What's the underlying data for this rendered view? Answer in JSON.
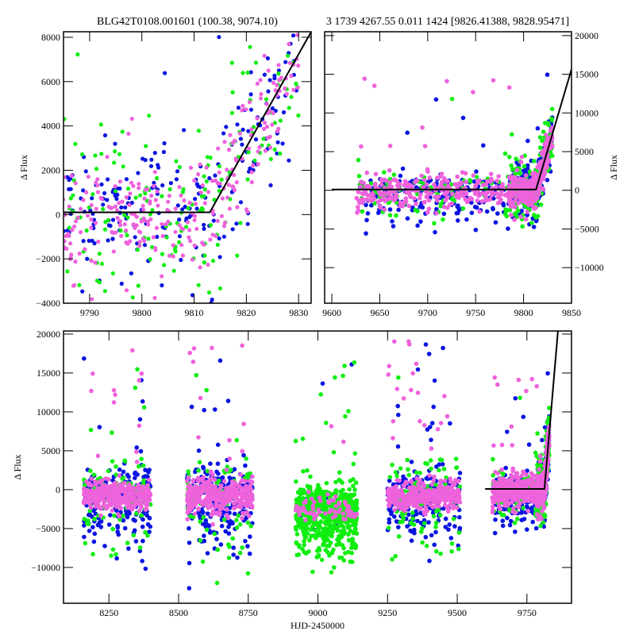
{
  "chart_data": [
    {
      "id": "zoom",
      "type": "scatter",
      "title": "BLG42T0108.001601 (100.38, 9074.10)",
      "xlabel": "",
      "ylabel": "Δ Flux",
      "xlim": [
        9785,
        9832.4
      ],
      "ylim": [
        -4000,
        8250
      ],
      "xticks": [
        9790,
        9800,
        9810,
        9820,
        9830
      ],
      "yticks": [
        -4000,
        -2000,
        0,
        2000,
        4000,
        6000,
        8000
      ],
      "ylabel_side": "left"
    },
    {
      "id": "season",
      "type": "scatter",
      "title": "3 1739 4267.55 0.011 1424 [9826.41388, 9828.95471]",
      "xlabel": "",
      "ylabel": "Δ Flux",
      "xlim": [
        9592.5,
        9850
      ],
      "ylim": [
        -14600,
        20500
      ],
      "xticks": [
        9600,
        9650,
        9700,
        9750,
        9800,
        9850
      ],
      "yticks": [
        -10000,
        -5000,
        0,
        5000,
        10000,
        15000,
        20000
      ],
      "ylabel_side": "right"
    },
    {
      "id": "full",
      "type": "scatter",
      "title": "",
      "xlabel": "HJD-2450000",
      "ylabel": "Δ Flux",
      "xlim": [
        8087,
        9910
      ],
      "ylim": [
        -14600,
        20400
      ],
      "xticks": [
        8250,
        8500,
        8750,
        9000,
        9250,
        9500,
        9750
      ],
      "yticks": [
        -10000,
        -5000,
        0,
        5000,
        10000,
        15000,
        20000
      ],
      "ylabel_side": "left"
    }
  ],
  "series": [
    {
      "name": "blue",
      "color": "#0a14e0"
    },
    {
      "name": "green",
      "color": "#10ee10"
    },
    {
      "name": "pink",
      "color": "#ee62dc"
    }
  ],
  "seasons": [
    {
      "start": 8160,
      "end": 8400,
      "mean": -700,
      "pink_sd": 900,
      "blue_sd": 3200,
      "green_sd": 4000,
      "mix": [
        0.3,
        0.15,
        0.55
      ]
    },
    {
      "start": 8530,
      "end": 8765,
      "mean": -700,
      "pink_sd": 1200,
      "blue_sd": 3600,
      "green_sd": 4000,
      "mix": [
        0.35,
        0.12,
        0.53
      ]
    },
    {
      "start": 8920,
      "end": 9140,
      "mean": -2600,
      "pink_sd": 900,
      "blue_sd": 1500,
      "green_sd": 3000,
      "mix": [
        0.1,
        0.8,
        0.1
      ]
    },
    {
      "start": 9250,
      "end": 9510,
      "mean": -900,
      "pink_sd": 900,
      "blue_sd": 3200,
      "green_sd": 4200,
      "mix": [
        0.35,
        0.15,
        0.5
      ]
    },
    {
      "start": 9625,
      "end": 9830,
      "mean": -300,
      "pink_sd": 1300,
      "blue_sd": 3000,
      "green_sd": 3000,
      "mix": [
        0.35,
        0.15,
        0.5
      ]
    }
  ],
  "model": {
    "baseline": 100,
    "t_break": 9813,
    "slope_per_day": 420,
    "start": 9600
  }
}
